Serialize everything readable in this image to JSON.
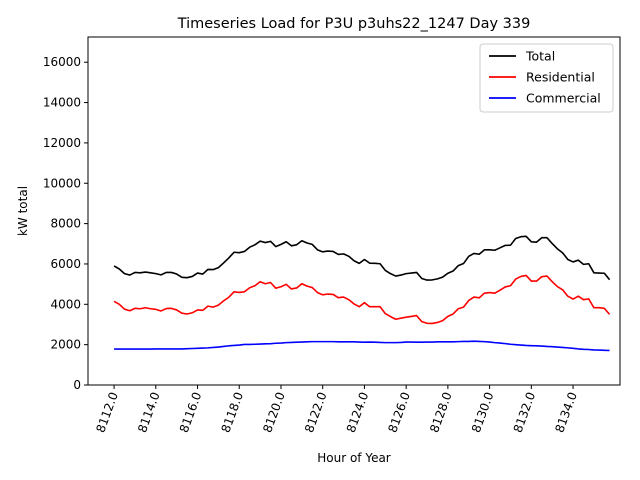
{
  "chart_data": {
    "type": "line",
    "title": "Timeseries Load for P3U p3uhs22_1247  Day 339",
    "xlabel": "Hour of Year",
    "ylabel": "kW total",
    "xlim": [
      8110.75,
      8136.25
    ],
    "ylim": [
      0,
      17250
    ],
    "xticks": [
      8112,
      8114,
      8116,
      8118,
      8120,
      8122,
      8124,
      8126,
      8128,
      8130,
      8132,
      8134
    ],
    "xtick_labels": [
      "8112.0",
      "8114.0",
      "8116.0",
      "8118.0",
      "8120.0",
      "8122.0",
      "8124.0",
      "8126.0",
      "8128.0",
      "8130.0",
      "8132.0",
      "8134.0"
    ],
    "yticks": [
      0,
      2000,
      4000,
      6000,
      8000,
      10000,
      12000,
      14000,
      16000
    ],
    "ytick_labels": [
      "0",
      "2000",
      "4000",
      "6000",
      "8000",
      "10000",
      "12000",
      "14000",
      "16000"
    ],
    "legend_position": "top-right",
    "grid": false,
    "x": [
      8112.0,
      8112.25,
      8112.5,
      8112.75,
      8113.0,
      8113.25,
      8113.5,
      8113.75,
      8114.0,
      8114.25,
      8114.5,
      8114.75,
      8115.0,
      8115.25,
      8115.5,
      8115.75,
      8116.0,
      8116.25,
      8116.5,
      8116.75,
      8117.0,
      8117.25,
      8117.5,
      8117.75,
      8118.0,
      8118.25,
      8118.5,
      8118.75,
      8119.0,
      8119.25,
      8119.5,
      8119.75,
      8120.0,
      8120.25,
      8120.5,
      8120.75,
      8121.0,
      8121.25,
      8121.5,
      8121.75,
      8122.0,
      8122.25,
      8122.5,
      8122.75,
      8123.0,
      8123.25,
      8123.5,
      8123.75,
      8124.0,
      8124.25,
      8124.5,
      8124.75,
      8125.0,
      8125.25,
      8125.5,
      8125.75,
      8126.0,
      8126.25,
      8126.5,
      8126.75,
      8127.0,
      8127.25,
      8127.5,
      8127.75,
      8128.0,
      8128.25,
      8128.5,
      8128.75,
      8129.0,
      8129.25,
      8129.5,
      8129.75,
      8130.0,
      8130.25,
      8130.5,
      8130.75,
      8131.0,
      8131.25,
      8131.5,
      8131.75,
      8132.0,
      8132.25,
      8132.5,
      8132.75,
      8133.0,
      8133.25,
      8133.5,
      8133.75,
      8134.0,
      8134.25,
      8134.5,
      8134.75,
      8135.0,
      8135.25,
      8135.5,
      8135.75
    ],
    "series": [
      {
        "name": "Total",
        "color": "#000000",
        "values": [
          5900,
          5750,
          5520,
          5450,
          5580,
          5560,
          5600,
          5560,
          5520,
          5460,
          5580,
          5580,
          5500,
          5340,
          5320,
          5380,
          5550,
          5500,
          5730,
          5720,
          5820,
          6050,
          6300,
          6580,
          6560,
          6620,
          6830,
          6950,
          7130,
          7060,
          7120,
          6860,
          6970,
          7100,
          6900,
          6950,
          7150,
          7040,
          6970,
          6700,
          6600,
          6640,
          6620,
          6470,
          6500,
          6380,
          6160,
          6030,
          6220,
          6040,
          6030,
          6010,
          5680,
          5520,
          5400,
          5450,
          5520,
          5550,
          5580,
          5280,
          5200,
          5210,
          5260,
          5350,
          5540,
          5650,
          5920,
          6020,
          6380,
          6520,
          6480,
          6700,
          6700,
          6680,
          6800,
          6920,
          6930,
          7260,
          7350,
          7370,
          7100,
          7080,
          7300,
          7300,
          7010,
          6750,
          6550,
          6220,
          6100,
          6190,
          5980,
          6010,
          5560,
          5550,
          5540,
          5220
        ]
      },
      {
        "name": "Residential",
        "color": "#ff0000",
        "values": [
          4150,
          4000,
          3760,
          3680,
          3800,
          3780,
          3830,
          3780,
          3750,
          3670,
          3790,
          3800,
          3720,
          3560,
          3520,
          3580,
          3720,
          3700,
          3910,
          3860,
          3960,
          4170,
          4350,
          4620,
          4590,
          4620,
          4820,
          4920,
          5120,
          5020,
          5080,
          4800,
          4870,
          4990,
          4760,
          4810,
          5020,
          4900,
          4830,
          4580,
          4470,
          4510,
          4490,
          4330,
          4360,
          4230,
          4020,
          3880,
          4080,
          3880,
          3880,
          3880,
          3540,
          3390,
          3260,
          3310,
          3360,
          3400,
          3440,
          3140,
          3060,
          3050,
          3100,
          3190,
          3400,
          3520,
          3780,
          3860,
          4190,
          4360,
          4320,
          4550,
          4580,
          4550,
          4700,
          4860,
          4920,
          5250,
          5380,
          5430,
          5150,
          5150,
          5370,
          5400,
          5120,
          4880,
          4720,
          4400,
          4260,
          4400,
          4230,
          4270,
          3830,
          3830,
          3800,
          3500
        ]
      },
      {
        "name": "Commercial",
        "color": "#0000ff",
        "values": [
          1780,
          1780,
          1780,
          1780,
          1780,
          1780,
          1780,
          1780,
          1790,
          1790,
          1790,
          1790,
          1790,
          1790,
          1800,
          1810,
          1820,
          1830,
          1840,
          1860,
          1880,
          1910,
          1940,
          1960,
          1980,
          2010,
          2010,
          2020,
          2030,
          2040,
          2050,
          2070,
          2080,
          2100,
          2110,
          2120,
          2130,
          2140,
          2150,
          2150,
          2150,
          2150,
          2150,
          2140,
          2140,
          2140,
          2140,
          2130,
          2120,
          2130,
          2120,
          2110,
          2100,
          2100,
          2100,
          2110,
          2130,
          2130,
          2120,
          2120,
          2130,
          2130,
          2140,
          2140,
          2140,
          2140,
          2150,
          2160,
          2160,
          2170,
          2160,
          2150,
          2130,
          2100,
          2080,
          2050,
          2020,
          2000,
          1980,
          1960,
          1950,
          1940,
          1930,
          1910,
          1900,
          1880,
          1860,
          1840,
          1820,
          1790,
          1770,
          1760,
          1740,
          1730,
          1720,
          1710
        ]
      }
    ]
  }
}
